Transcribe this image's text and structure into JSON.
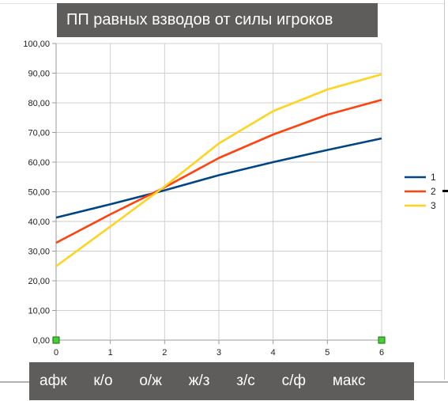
{
  "chart_data": {
    "type": "line",
    "title": "ПП равных взводов от силы игроков",
    "x": [
      0,
      1,
      2,
      3,
      4,
      5,
      6
    ],
    "x_ticks": [
      "0",
      "1",
      "2",
      "3",
      "4",
      "5",
      "6"
    ],
    "y_ticks": [
      "0,00",
      "10,00",
      "20,00",
      "30,00",
      "40,00",
      "50,00",
      "60,00",
      "70,00",
      "80,00",
      "90,00",
      "100,00"
    ],
    "ylim": [
      0,
      100
    ],
    "xlim": [
      0,
      6
    ],
    "grid": true,
    "legend_position": "right",
    "series": [
      {
        "name": "1",
        "color": "#004586",
        "values": [
          41.3,
          45.8,
          50.5,
          55.6,
          60.0,
          64.1,
          68.0
        ]
      },
      {
        "name": "2",
        "color": "#ff420e",
        "values": [
          32.8,
          42.4,
          51.5,
          61.4,
          69.3,
          76.0,
          81.0
        ]
      },
      {
        "name": "3",
        "color": "#ffd320",
        "values": [
          24.9,
          38.3,
          51.8,
          66.3,
          77.2,
          84.5,
          89.6
        ]
      }
    ]
  },
  "footer_text": "афк   к/о   о/ж   ж/з   з/с   с/ф   макс"
}
